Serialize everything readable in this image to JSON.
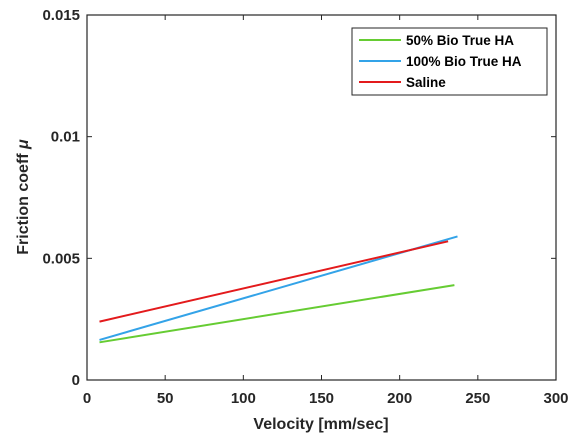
{
  "chart_data": {
    "type": "line",
    "title": "",
    "xlabel": "Velocity [mm/sec]",
    "ylabel": "Friction coeff",
    "ylabel_symbol": "μ",
    "xlim": [
      0,
      300
    ],
    "ylim": [
      0,
      0.015
    ],
    "x_ticks": [
      0,
      50,
      100,
      150,
      200,
      250,
      300
    ],
    "x_tick_labels": [
      "0",
      "50",
      "100",
      "150",
      "200",
      "250",
      "300"
    ],
    "y_ticks": [
      0,
      0.005,
      0.01,
      0.015
    ],
    "y_tick_labels": [
      "0",
      "0.005",
      "0.01",
      "0.015"
    ],
    "grid": false,
    "legend_position": "top-right",
    "series": [
      {
        "name": "50% Bio True HA",
        "color": "#66cc33",
        "x": [
          8,
          235
        ],
        "y": [
          0.00155,
          0.0039
        ]
      },
      {
        "name": "100% Bio True HA",
        "color": "#33a3e8",
        "x": [
          8,
          237
        ],
        "y": [
          0.00165,
          0.0059
        ]
      },
      {
        "name": "Saline",
        "color": "#e31a1c",
        "x": [
          8,
          231
        ],
        "y": [
          0.0024,
          0.0057
        ]
      }
    ]
  }
}
